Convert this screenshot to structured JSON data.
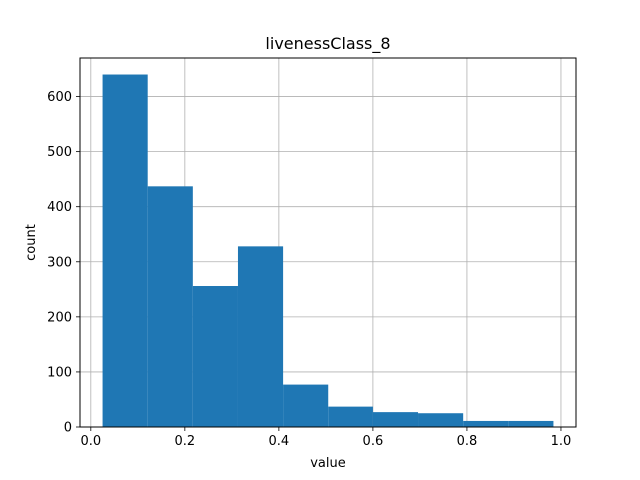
{
  "chart_data": {
    "type": "bar",
    "title": "livenessClass_8",
    "xlabel": "value",
    "ylabel": "count",
    "xlim": [
      0.0,
      1.0
    ],
    "ylim": [
      0,
      670
    ],
    "grid": true,
    "bar_color": "#1f77b4",
    "x_ticks": [
      0.0,
      0.2,
      0.4,
      0.6,
      0.8,
      1.0
    ],
    "x_tick_labels": [
      "0.0",
      "0.2",
      "0.4",
      "0.6",
      "0.8",
      "1.0"
    ],
    "y_ticks": [
      0,
      100,
      200,
      300,
      400,
      500,
      600
    ],
    "y_tick_labels": [
      "0",
      "100",
      "200",
      "300",
      "400",
      "500",
      "600"
    ],
    "bins": [
      {
        "x0": 0.025,
        "x1": 0.121,
        "value": 640
      },
      {
        "x0": 0.121,
        "x1": 0.217,
        "value": 437
      },
      {
        "x0": 0.217,
        "x1": 0.313,
        "value": 256
      },
      {
        "x0": 0.313,
        "x1": 0.409,
        "value": 328
      },
      {
        "x0": 0.409,
        "x1": 0.505,
        "value": 77
      },
      {
        "x0": 0.505,
        "x1": 0.6,
        "value": 37
      },
      {
        "x0": 0.6,
        "x1": 0.696,
        "value": 27
      },
      {
        "x0": 0.696,
        "x1": 0.792,
        "value": 25
      },
      {
        "x0": 0.792,
        "x1": 0.888,
        "value": 11
      },
      {
        "x0": 0.888,
        "x1": 0.984,
        "value": 11
      }
    ]
  }
}
